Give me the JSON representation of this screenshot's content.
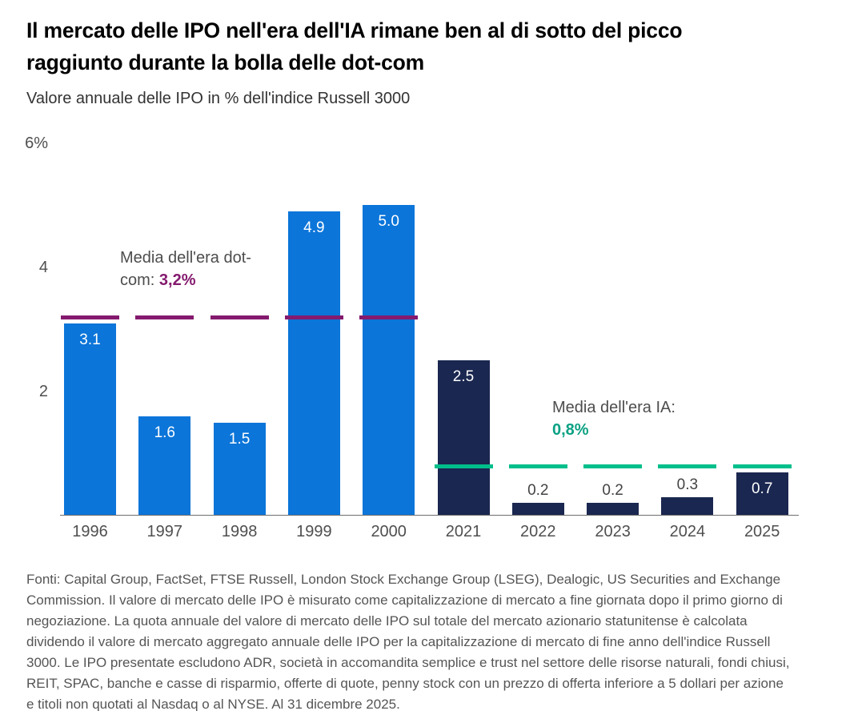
{
  "title_lines": [
    "Il mercato delle IPO nell'era dell'IA rimane ben al di sotto del picco",
    "raggiunto durante la bolla delle dot-com"
  ],
  "subtitle": "Valore annuale delle IPO in % dell'indice Russell 3000",
  "colors": {
    "dotcom_bar": "#0b75d9",
    "ia_bar": "#1a2750",
    "dotcom_avg": "#841a6e",
    "ia_avg_line": "#00bf8b",
    "ia_avg_text": "#0aa184",
    "axis_line": "#6f6f6f"
  },
  "chart_data": {
    "type": "bar",
    "categories": [
      "1996",
      "1997",
      "1998",
      "1999",
      "2000",
      "2021",
      "2022",
      "2023",
      "2024",
      "2025"
    ],
    "values": [
      3.1,
      1.6,
      1.5,
      4.9,
      5.0,
      2.5,
      0.2,
      0.2,
      0.3,
      0.7
    ],
    "value_labels": [
      "3.1",
      "1.6",
      "1.5",
      "4.9",
      "5.0",
      "2.5",
      "0.2",
      "0.2",
      "0.3",
      "0.7"
    ],
    "series": [
      {
        "key": "dotcom",
        "category_indexes": [
          0,
          1,
          2,
          3,
          4
        ],
        "color_key": "dotcom_bar"
      },
      {
        "key": "ia",
        "category_indexes": [
          5,
          6,
          7,
          8,
          9
        ],
        "color_key": "ia_bar"
      }
    ],
    "reference_lines": [
      {
        "key": "dotcom-average",
        "value": 3.2,
        "label": "Media dell'era dot-com: 3,2%",
        "bars": [
          0,
          4
        ],
        "color_key": "dotcom_avg"
      },
      {
        "key": "ia-average",
        "value": 0.8,
        "label": "Media dell'era IA: 0,8%",
        "bars": [
          5,
          9
        ],
        "color_key": "ia_avg_line"
      }
    ],
    "y_axis": {
      "min": 0,
      "max": 6,
      "ticks": [
        {
          "value": 6,
          "label": "6%"
        },
        {
          "value": 4,
          "label": "4"
        },
        {
          "value": 2,
          "label": "2"
        }
      ]
    },
    "grid": false,
    "legend": false
  },
  "annotations": {
    "dotcom": {
      "line1": "Media dell'era dot-",
      "line2_prefix": "com: ",
      "value": "3,2%"
    },
    "ia": {
      "line1": "Media dell'era IA:",
      "value": "0,8%"
    }
  },
  "footnote": "Fonti: Capital Group, FactSet, FTSE Russell, London Stock Exchange Group (LSEG), Dealogic, US Securities and Exchange Commission. Il valore di mercato delle IPO è misurato come capitalizzazione di mercato a fine giornata dopo il primo giorno di negoziazione. La quota annuale del valore di mercato delle IPO sul totale del mercato azionario statunitense è calcolata dividendo il valore di mercato aggregato annuale delle IPO per la capitalizzazione di mercato di fine anno dell'indice Russell 3000. Le IPO presentate escludono ADR, società in accomandita semplice e trust nel settore delle risorse naturali, fondi chiusi, REIT, SPAC, banche e casse di risparmio, offerte di quote, penny stock con un prezzo di offerta inferiore a 5 dollari per azione e titoli non quotati al Nasdaq o al NYSE. Al 31 dicembre 2025."
}
